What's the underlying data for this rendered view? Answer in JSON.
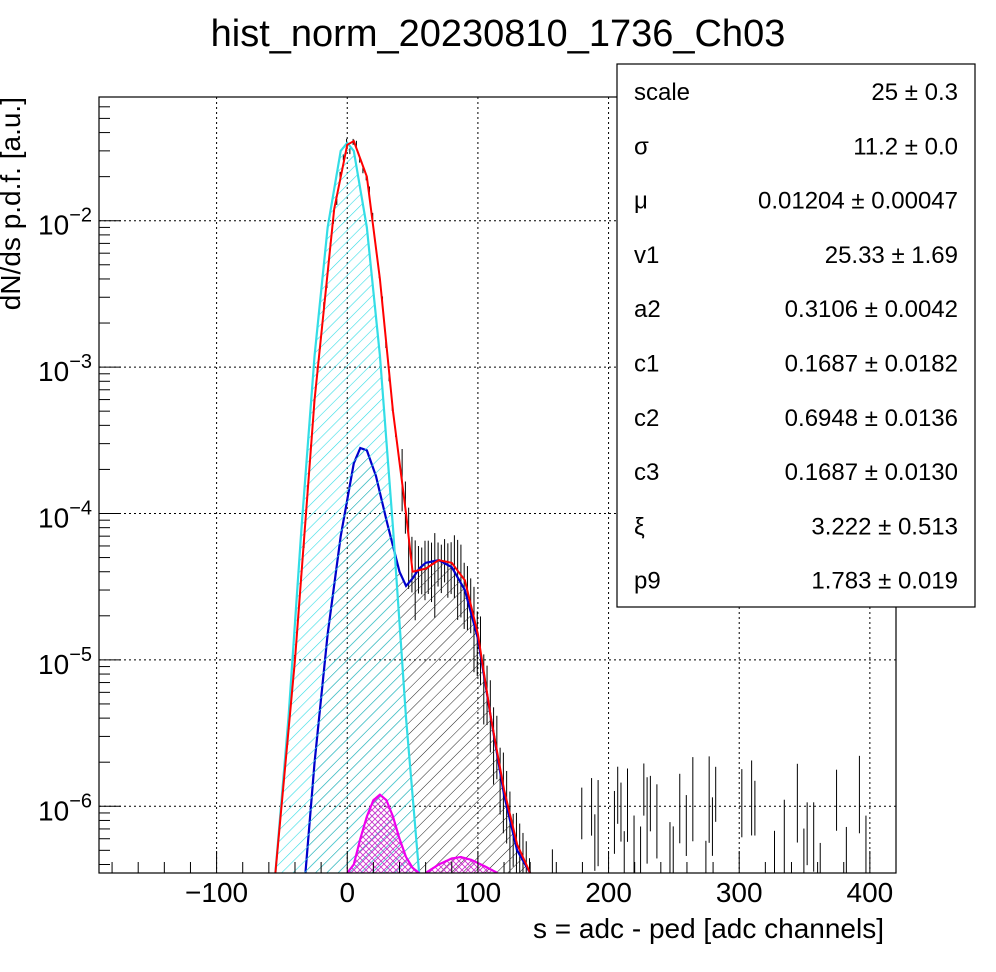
{
  "chart_data": {
    "type": "line",
    "title": "hist_norm_20230810_1736_Ch03",
    "xlabel": "s = adc - ped [adc channels]",
    "ylabel": "dN/ds p.d.f. [a.u.]",
    "x_range": [
      -190,
      420
    ],
    "y_range": [
      3.5e-07,
      0.07
    ],
    "y_log_scale": true,
    "grid": true,
    "x_ticks": [
      -100,
      0,
      100,
      200,
      300,
      400
    ],
    "x_tick_labels": [
      "−100",
      "0",
      "100",
      "200",
      "300",
      "400"
    ],
    "y_ticks": [
      1e-06,
      1e-05,
      0.0001,
      0.001,
      0.01
    ],
    "y_tick_labels": [
      {
        "base": "10",
        "exp": "−6"
      },
      {
        "base": "10",
        "exp": "−5"
      },
      {
        "base": "10",
        "exp": "−4"
      },
      {
        "base": "10",
        "exp": "−3"
      },
      {
        "base": "10",
        "exp": "−2"
      }
    ],
    "series": [
      {
        "kind": "total-fit",
        "color": "#ff0000",
        "x": [
          -55,
          -40,
          -25,
          -10,
          0,
          5,
          15,
          25,
          35,
          45,
          50,
          60,
          70,
          80,
          90,
          100,
          110,
          120,
          130,
          140
        ],
        "y": [
          3.5e-07,
          1e-05,
          0.0006,
          0.012,
          0.033,
          0.035,
          0.02,
          0.004,
          0.0005,
          0.0001,
          4e-05,
          4.2e-05,
          4.8e-05,
          4.6e-05,
          3.5e-05,
          1.5e-05,
          4e-06,
          1.3e-06,
          5.5e-07,
          3.5e-07
        ]
      },
      {
        "kind": "pedestal",
        "color": "#33dde6",
        "x": [
          -55,
          -45,
          -35,
          -25,
          -15,
          -5,
          0,
          5,
          15,
          25,
          35,
          45,
          55
        ],
        "y": [
          3.5e-07,
          4e-06,
          8e-05,
          0.0012,
          0.009,
          0.03,
          0.034,
          0.03,
          0.009,
          0.0012,
          8e-05,
          4e-06,
          3.5e-07
        ]
      },
      {
        "kind": "signal-sum",
        "color": "#0000cc",
        "x": [
          -32,
          -25,
          -15,
          -5,
          5,
          10,
          15,
          22,
          30,
          40,
          45,
          50,
          55,
          60,
          70,
          80,
          90,
          100,
          110,
          120,
          130,
          140
        ],
        "y": [
          3.5e-07,
          2e-06,
          1.5e-05,
          7e-05,
          0.00022,
          0.00028,
          0.00027,
          0.00018,
          9e-05,
          4e-05,
          3.2e-05,
          3.6e-05,
          4.2e-05,
          4.6e-05,
          4.8e-05,
          4.3e-05,
          3e-05,
          1.4e-05,
          4e-06,
          1.2e-06,
          5e-07,
          3.5e-07
        ]
      },
      {
        "kind": "pe-component",
        "color": "#ee00ee",
        "x": [
          0,
          5,
          10,
          15,
          20,
          25,
          30,
          35,
          40,
          45,
          50,
          55
        ],
        "y": [
          3.5e-07,
          4e-07,
          6e-07,
          8.5e-07,
          1.1e-06,
          1.2e-06,
          1.1e-06,
          8.5e-07,
          6e-07,
          4.5e-07,
          3.8e-07,
          3.5e-07
        ]
      },
      {
        "kind": "pe-component",
        "color": "#ee00ee",
        "x": [
          60,
          70,
          80,
          87,
          95,
          105,
          115
        ],
        "y": [
          3.5e-07,
          4e-07,
          4.4e-07,
          4.5e-07,
          4.3e-07,
          3.9e-07,
          3.5e-07
        ]
      }
    ],
    "legend": {
      "placement": "top-right",
      "rows": [
        {
          "name": "scale",
          "value": "25 ± 0.3"
        },
        {
          "name": "σ",
          "value": "11.2 ± 0.0"
        },
        {
          "name": "μ",
          "value": "0.01204 ± 0.00047"
        },
        {
          "name": "v1",
          "value": "25.33 ± 1.69"
        },
        {
          "name": "a2",
          "value": "0.3106 ± 0.0042"
        },
        {
          "name": "c1",
          "value": "0.1687 ± 0.0182"
        },
        {
          "name": "c2",
          "value": "0.6948 ± 0.0136"
        },
        {
          "name": "c3",
          "value": "0.1687 ± 0.0130"
        },
        {
          "name": "ξ",
          "value": "3.222 ± 0.513"
        },
        {
          "name": "p9",
          "value": "1.783 ± 0.019"
        }
      ]
    }
  }
}
